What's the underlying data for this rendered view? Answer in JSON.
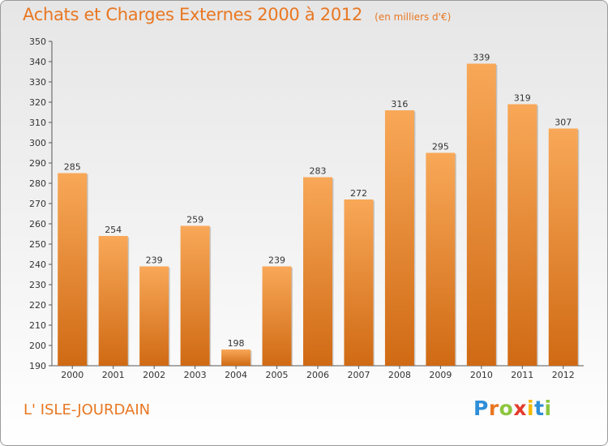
{
  "header": {
    "title": "Achats et Charges Externes 2000 à 2012",
    "unit": "(en milliers d'€)"
  },
  "footer": {
    "town": "L' ISLE-JOURDAIN",
    "logo_letters": [
      "P",
      "r",
      "o",
      "x",
      "i",
      "t",
      "i"
    ]
  },
  "colors": {
    "title": "#e87722",
    "bar_top": "#f8a858",
    "bar_bottom": "#d06a14",
    "logo": [
      "#2f8fd8",
      "#e87722",
      "#8cc63f",
      "#e43b2c",
      "#f5b800",
      "#2f8fd8",
      "#8cc63f"
    ]
  },
  "chart_data": {
    "type": "bar",
    "title": "Achats et Charges Externes 2000 à 2012",
    "subtitle": "(en milliers d'€)",
    "categories": [
      "2000",
      "2001",
      "2002",
      "2003",
      "2004",
      "2005",
      "2006",
      "2007",
      "2008",
      "2009",
      "2010",
      "2011",
      "2012"
    ],
    "values": [
      285,
      254,
      239,
      259,
      198,
      239,
      283,
      272,
      316,
      295,
      339,
      319,
      307
    ],
    "ylim": [
      190,
      350
    ],
    "yticks": [
      190,
      200,
      210,
      220,
      230,
      240,
      250,
      260,
      270,
      280,
      290,
      300,
      310,
      320,
      330,
      340,
      350
    ],
    "grid": false,
    "legend": "none",
    "data_labels": true
  }
}
